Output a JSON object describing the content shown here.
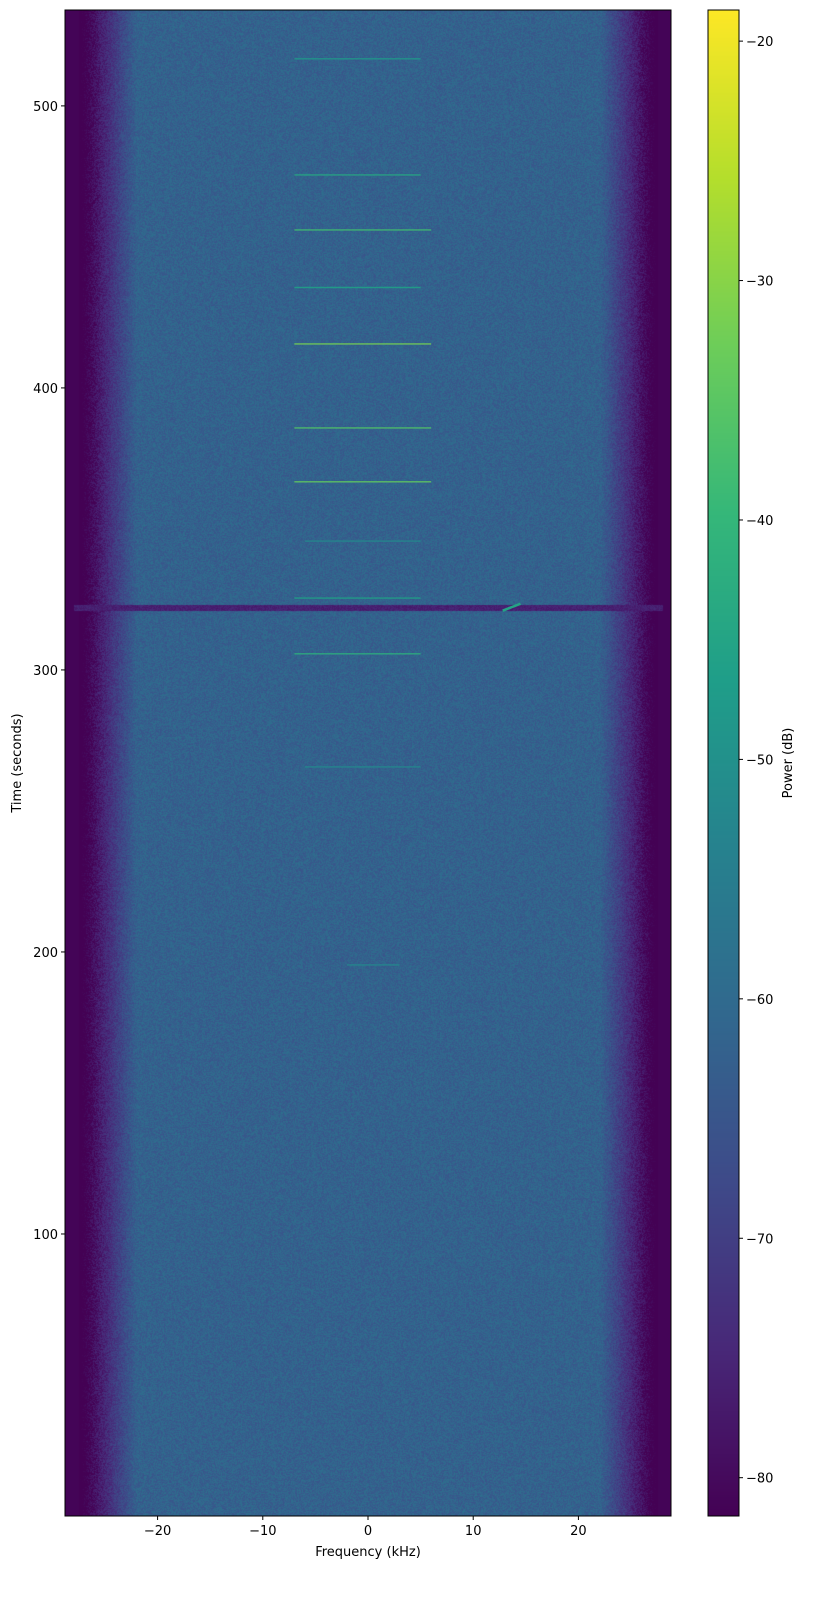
{
  "chart_data": {
    "type": "heatmap",
    "title": "",
    "xlabel": "Frequency (kHz)",
    "ylabel": "Time (seconds)",
    "colorbar_label": "Power (dB)",
    "colormap": "viridis",
    "xlim": [
      -28.8,
      28.8
    ],
    "ylim": [
      0,
      534
    ],
    "clim": [
      -81.6,
      -18.7
    ],
    "x_ticks": [
      -20,
      -10,
      0,
      10,
      20
    ],
    "x_tick_labels": [
      "−20",
      "−10",
      "0",
      "10",
      "20"
    ],
    "y_ticks": [
      100,
      200,
      300,
      400,
      500
    ],
    "y_tick_labels": [
      "100",
      "200",
      "300",
      "400",
      "500"
    ],
    "colorbar_ticks": [
      -20,
      -30,
      -40,
      -50,
      -60,
      -70,
      -80
    ],
    "colorbar_tick_labels": [
      "−20",
      "−30",
      "−40",
      "−50",
      "−60",
      "−70",
      "−80"
    ],
    "noise_floor_db": -62,
    "passband_khz": [
      -25,
      25
    ],
    "grid": false,
    "tone_bursts": [
      {
        "time": 516.7,
        "f_start": -7,
        "f_end": 5,
        "power_db": -48
      },
      {
        "time": 475.5,
        "f_start": -7,
        "f_end": 5,
        "power_db": -44
      },
      {
        "time": 456.0,
        "f_start": -7,
        "f_end": 6,
        "power_db": -38
      },
      {
        "time": 435.6,
        "f_start": -7,
        "f_end": 5,
        "power_db": -46
      },
      {
        "time": 415.6,
        "f_start": -7,
        "f_end": 6,
        "power_db": -32
      },
      {
        "time": 385.8,
        "f_start": -7,
        "f_end": 6,
        "power_db": -36
      },
      {
        "time": 366.7,
        "f_start": -7,
        "f_end": 6,
        "power_db": -34
      },
      {
        "time": 345.7,
        "f_start": -6,
        "f_end": 5,
        "power_db": -52
      },
      {
        "time": 325.5,
        "f_start": -7,
        "f_end": 5,
        "power_db": -46
      },
      {
        "time": 305.7,
        "f_start": -7,
        "f_end": 5,
        "power_db": -42
      },
      {
        "time": 265.6,
        "f_start": -6,
        "f_end": 5,
        "power_db": -52
      },
      {
        "time": 195.4,
        "f_start": -2,
        "f_end": 3,
        "power_db": -52
      }
    ],
    "dropout": {
      "time": 322.3,
      "power_db": -76
    },
    "chirp": {
      "time_start": 321,
      "time_end": 323.5,
      "f_start": 12.8,
      "f_end": 14.5,
      "power_db": -45
    }
  }
}
